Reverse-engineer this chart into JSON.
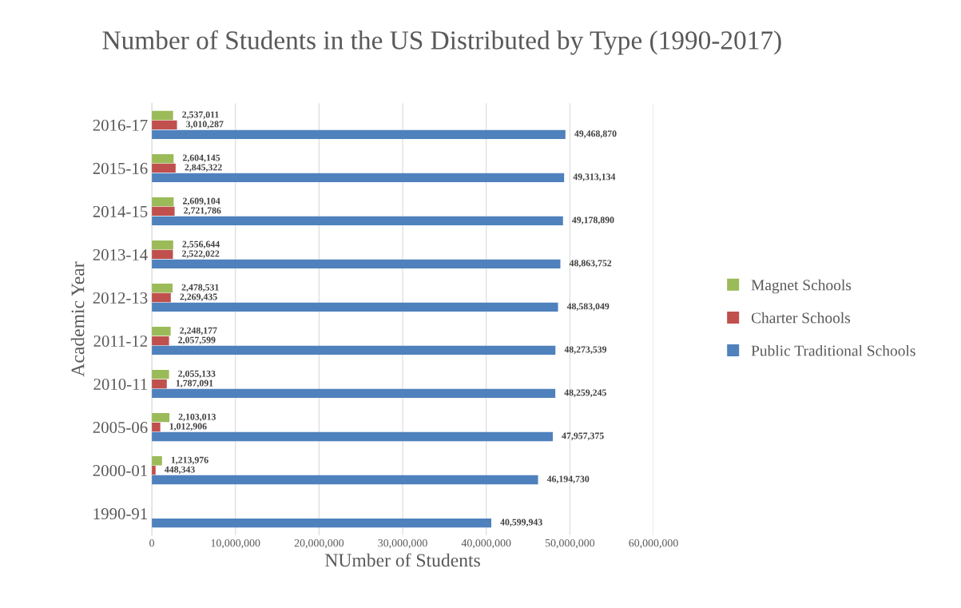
{
  "chart_data": {
    "type": "bar",
    "orientation": "horizontal",
    "title": "Number of Students in the US Distributed by Type (1990-2017)",
    "xlabel": "NUmber of Students",
    "ylabel": "Academic Year",
    "categories": [
      "2016-17",
      "2015-16",
      "2014-15",
      "2013-14",
      "2012-13",
      "2011-12",
      "2010-11",
      "2005-06",
      "2000-01",
      "1990-91"
    ],
    "series": [
      {
        "name": "Magnet Schools",
        "color": "#9bbb59",
        "values": [
          2537011,
          2604145,
          2609104,
          2556644,
          2478531,
          2248177,
          2055133,
          2103013,
          1213976,
          null
        ],
        "value_labels": [
          "2,537,011",
          "2,604,145",
          "2,609,104",
          "2,556,644",
          "2,478,531",
          "2,248,177",
          "2,055,133",
          "2,103,013",
          "1,213,976",
          null
        ]
      },
      {
        "name": "Charter Schools",
        "color": "#c0504d",
        "values": [
          3010287,
          2845322,
          2721786,
          2522022,
          2269435,
          2057599,
          1787091,
          1012906,
          448343,
          null
        ],
        "value_labels": [
          "3,010,287",
          "2,845,322",
          "2,721,786",
          "2,522,022",
          "2,269,435",
          "2,057,599",
          "1,787,091",
          "1,012,906",
          "448,343",
          null
        ]
      },
      {
        "name": "Public Traditional Schools",
        "color": "#4f81bd",
        "values": [
          49468870,
          49313134,
          49178890,
          48863752,
          48583049,
          48273539,
          48259245,
          47957375,
          46194730,
          40599943
        ],
        "value_labels": [
          "49,468,870",
          "49,313,134",
          "49,178,890",
          "48,863,752",
          "48,583,049",
          "48,273,539",
          "48,259,245",
          "47,957,375",
          "46,194,730",
          "40,599,943"
        ]
      }
    ],
    "xlim": [
      0,
      60000000
    ],
    "xticks": [
      0,
      {
        "value": 10000000,
        "label": "10,000,000"
      },
      {
        "value": 20000000,
        "label": "20,000,000"
      },
      {
        "value": 30000000,
        "label": "30,000,000"
      },
      {
        "value": 40000000,
        "label": "40,000,000"
      },
      {
        "value": 50000000,
        "label": "50,000,000"
      },
      {
        "value": 60000000,
        "label": "60,000,000"
      }
    ],
    "grid": "x",
    "legend": "right"
  }
}
